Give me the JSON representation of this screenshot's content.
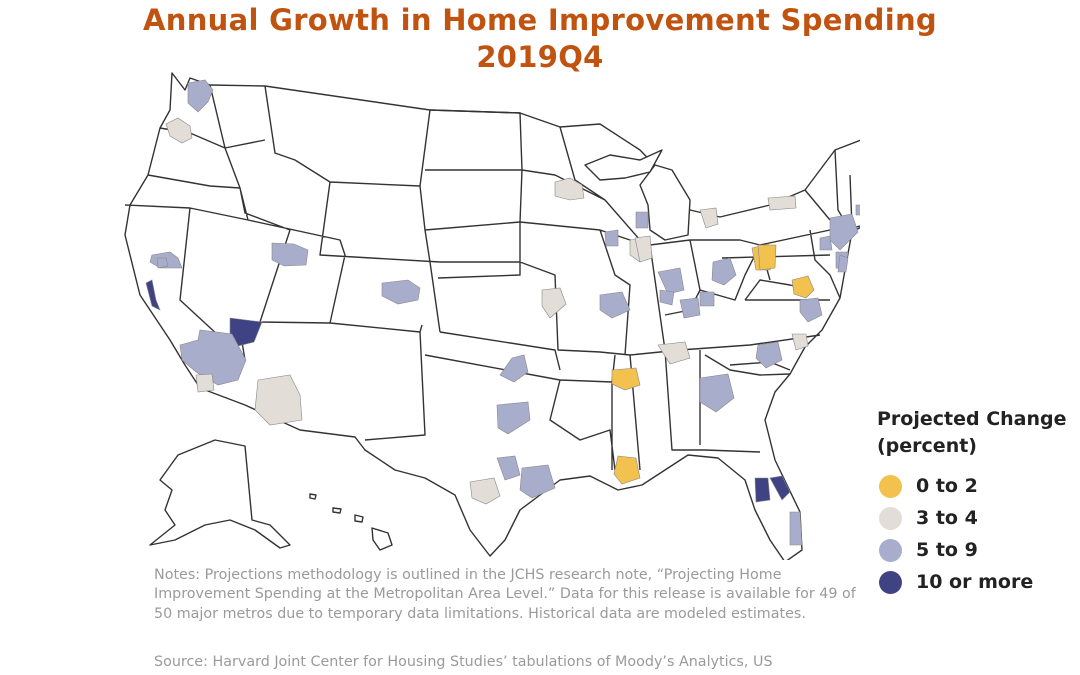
{
  "title": "Annual Growth in Home Improvement Spending",
  "subtitle": "2019Q4",
  "legend": {
    "title_line1": "Projected Change",
    "title_line2": "(percent)",
    "items": [
      {
        "label": "0 to 2",
        "color": "#f2c14e"
      },
      {
        "label": "3 to 4",
        "color": "#e2ddd6"
      },
      {
        "label": "5 to 9",
        "color": "#a9adcc"
      },
      {
        "label": "10 or more",
        "color": "#3f4383"
      }
    ]
  },
  "colors": {
    "title": "#c0530f",
    "state_fill": "#ffffff",
    "state_border": "#333333"
  },
  "metros": [
    {
      "category": "5 to 9"
    },
    {
      "category": "3 to 4"
    },
    {
      "category": "5 to 9"
    },
    {
      "category": "10 or more"
    },
    {
      "category": "5 to 9"
    },
    {
      "category": "3 to 4"
    },
    {
      "category": "10 or more"
    },
    {
      "category": "5 to 9"
    },
    {
      "category": "5 to 9"
    },
    {
      "category": "5 to 9"
    },
    {
      "category": "3 to 4"
    },
    {
      "category": "3 to 4"
    },
    {
      "category": "0 to 2"
    },
    {
      "category": "5 to 9"
    },
    {
      "category": "5 to 9"
    },
    {
      "category": "5 to 9"
    },
    {
      "category": "3 to 4"
    },
    {
      "category": "0 to 2"
    },
    {
      "category": "3 to 4"
    },
    {
      "category": "5 to 9"
    },
    {
      "category": "5 to 9"
    },
    {
      "category": "3 to 4"
    },
    {
      "category": "3 to 4"
    },
    {
      "category": "5 to 9"
    },
    {
      "category": "5 to 9"
    },
    {
      "category": "5 to 9"
    },
    {
      "category": "5 to 9"
    },
    {
      "category": "5 to 9"
    },
    {
      "category": "3 to 4"
    },
    {
      "category": "0 to 2"
    },
    {
      "category": "5 to 9"
    },
    {
      "category": "3 to 4"
    },
    {
      "category": "0 to 2"
    },
    {
      "category": "5 to 9"
    },
    {
      "category": "5 to 9"
    },
    {
      "category": "5 to 9"
    },
    {
      "category": "3 to 4"
    },
    {
      "category": "5 to 9"
    },
    {
      "category": "5 to 9"
    },
    {
      "category": "0 to 2"
    },
    {
      "category": "3 to 4"
    },
    {
      "category": "0 to 2"
    },
    {
      "category": "5 to 9"
    },
    {
      "category": "10 or more"
    },
    {
      "category": "10 or more"
    },
    {
      "category": "5 to 9"
    },
    {
      "category": "5 to 9"
    },
    {
      "category": "5 to 9"
    },
    {
      "category": "5 to 9"
    }
  ],
  "notes": "Notes: Projections methodology is outlined in the JCHS research note, “Projecting Home Improvement Spending at the Metropolitan Area Level.” Data for this release is available for 49 of 50 major metros due to temporary data limitations. Historical data are modeled estimates.",
  "source": "Source: Harvard Joint Center for Housing Studies’ tabulations of Moody’s Analytics, US"
}
